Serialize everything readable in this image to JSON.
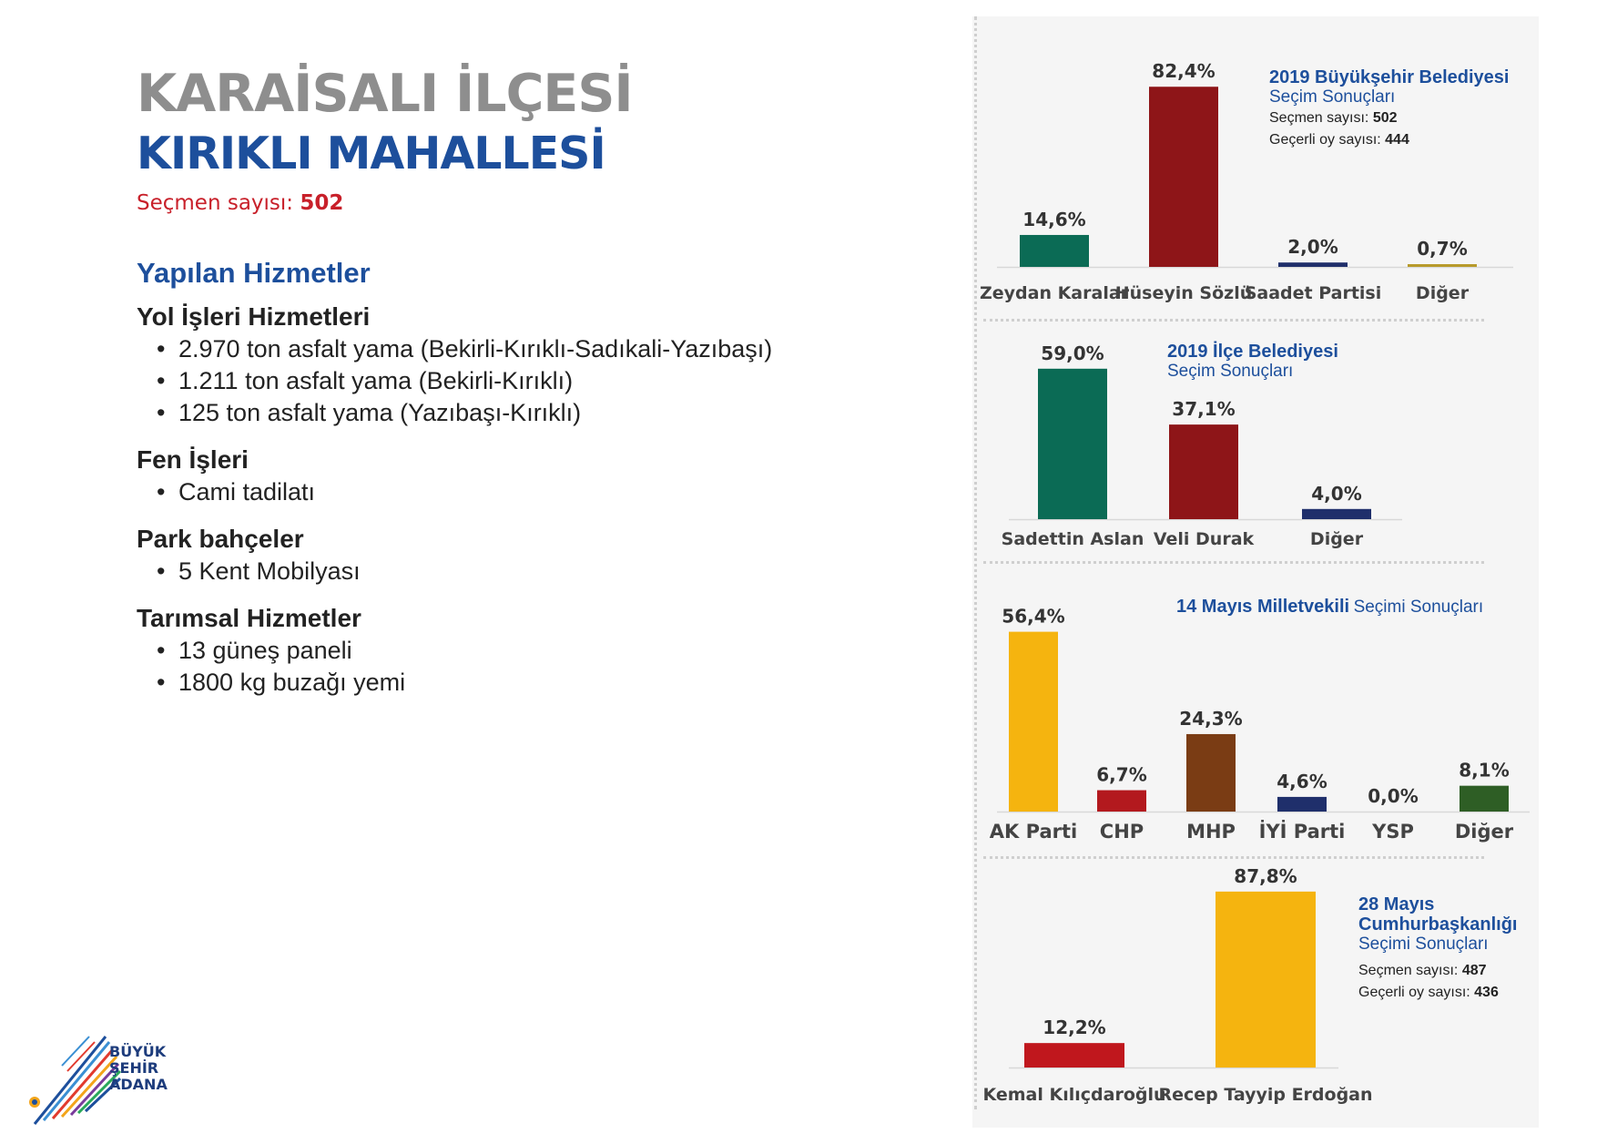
{
  "header": {
    "title_line1": "KARAİSALI İLÇESİ",
    "title_line2": "KIRIKLI MAHALLESİ",
    "voters_label": "Seçmen sayısı:",
    "voters_value": "502"
  },
  "services": {
    "heading": "Yapılan Hizmetler",
    "categories": [
      {
        "name": "Yol İşleri Hizmetleri",
        "items": [
          "2.970 ton asfalt yama (Bekirli-Kırıklı-Sadıkali-Yazıbaşı)",
          "1.211 ton asfalt yama (Bekirli-Kırıklı)",
          "125 ton asfalt yama (Yazıbaşı-Kırıklı)"
        ]
      },
      {
        "name": "Fen İşleri",
        "items": [
          "Cami tadilatı"
        ]
      },
      {
        "name": "Park bahçeler",
        "items": [
          "5 Kent Mobilyası"
        ]
      },
      {
        "name": "Tarımsal Hizmetler",
        "items": [
          "13 güneş paneli",
          "1800 kg buzağı yemi"
        ]
      }
    ]
  },
  "logo": {
    "line1": "BÜYÜK",
    "line2": "ŞEHİR",
    "line3": "ADANA"
  },
  "chart_info": [
    {
      "title_bold": "2019 Büyükşehir Belediyesi",
      "title_rest": "Seçim Sonuçları",
      "stat1_label": "Seçmen sayısı:",
      "stat1_value": "502",
      "stat2_label": "Geçerli oy sayısı:",
      "stat2_value": "444"
    },
    {
      "title_bold": "2019 İlçe Belediyesi",
      "title_rest": "Seçim Sonuçları"
    },
    {
      "title_bold": "14 Mayıs Milletvekili",
      "title_rest": "Seçimi Sonuçları"
    },
    {
      "title_bold": "28 Mayıs Cumhurbaşkanlığı",
      "title_rest": "Seçimi Sonuçları",
      "stat1_label": "Seçmen sayısı:",
      "stat1_value": "487",
      "stat2_label": "Geçerli oy sayısı:",
      "stat2_value": "436"
    }
  ],
  "chart_data": [
    {
      "type": "bar",
      "title": "2019 Büyükşehir Belediyesi Seçim Sonuçları",
      "categories": [
        "Zeydan Karalar",
        "Hüseyin Sözlü",
        "Saadet Partisi",
        "Diğer"
      ],
      "values": [
        14.6,
        82.4,
        2.0,
        0.7
      ],
      "labels": [
        "14,6%",
        "82,4%",
        "2,0%",
        "0,7%"
      ],
      "colors": [
        "#0b6b55",
        "#8e1518",
        "#1f2f6b",
        "#b79a2b"
      ]
    },
    {
      "type": "bar",
      "title": "2019 İlçe Belediyesi Seçim Sonuçları",
      "categories": [
        "Sadettin Aslan",
        "Veli Durak",
        "Diğer"
      ],
      "values": [
        59.0,
        37.1,
        4.0
      ],
      "labels": [
        "59,0%",
        "37,1%",
        "4,0%"
      ],
      "colors": [
        "#0b6b55",
        "#8e1518",
        "#1f2f6b"
      ]
    },
    {
      "type": "bar",
      "title": "14 Mayıs Milletvekili Seçimi Sonuçları",
      "categories": [
        "AK Parti",
        "CHP",
        "MHP",
        "İYİ Parti",
        "YSP",
        "Diğer"
      ],
      "values": [
        56.4,
        6.7,
        24.3,
        4.6,
        0.0,
        8.1
      ],
      "labels": [
        "56,4%",
        "6,7%",
        "24,3%",
        "4,6%",
        "0,0%",
        "8,1%"
      ],
      "colors": [
        "#f5b40f",
        "#b3191e",
        "#7a3c14",
        "#1f2f6b",
        "#7a2a8a",
        "#2e5e25"
      ]
    },
    {
      "type": "bar",
      "title": "28 Mayıs Cumhurbaşkanlığı Seçimi Sonuçları",
      "categories": [
        "Kemal Kılıçdaroğlu",
        "Recep Tayyip Erdoğan"
      ],
      "values": [
        12.2,
        87.8
      ],
      "labels": [
        "12,2%",
        "87,8%"
      ],
      "colors": [
        "#c0171d",
        "#f5b40f"
      ]
    }
  ]
}
